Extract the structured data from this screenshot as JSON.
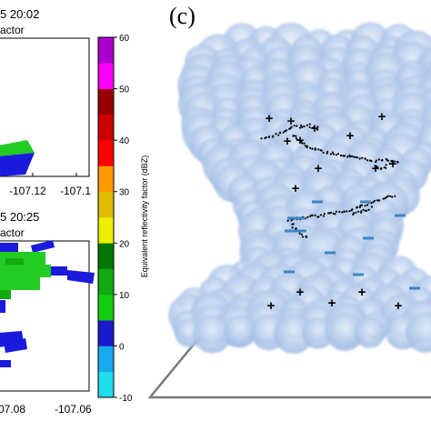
{
  "panel_top": {
    "time_label": "5 20:02",
    "field_label": "actor",
    "x_ticks": [
      "-107.12",
      "-107.1"
    ]
  },
  "panel_bottom": {
    "time_label": "5 20:25",
    "field_label": "actor",
    "x_ticks": [
      "07.08",
      "-107.06"
    ]
  },
  "colorbar": {
    "label": "Equivalent reflectivity factor (dBZ)",
    "ticks": [
      "-10",
      "0",
      "10",
      "20",
      "30",
      "40",
      "50",
      "60"
    ],
    "colors": [
      "#22ddee",
      "#1aa8ee",
      "#1a1acc",
      "#11cc11",
      "#11aa11",
      "#007700",
      "#eeee00",
      "#ddbb00",
      "#ff9900",
      "#ff0000",
      "#cc0000",
      "#990000",
      "#ff00ff",
      "#aa00cc"
    ]
  },
  "panel_c": {
    "label": "(c)",
    "cloud_color": "#a9c3e6",
    "plus_symbol": "+",
    "minus_symbol": "−",
    "plus_color": "#e06666",
    "minus_color": "#3d85c6"
  }
}
